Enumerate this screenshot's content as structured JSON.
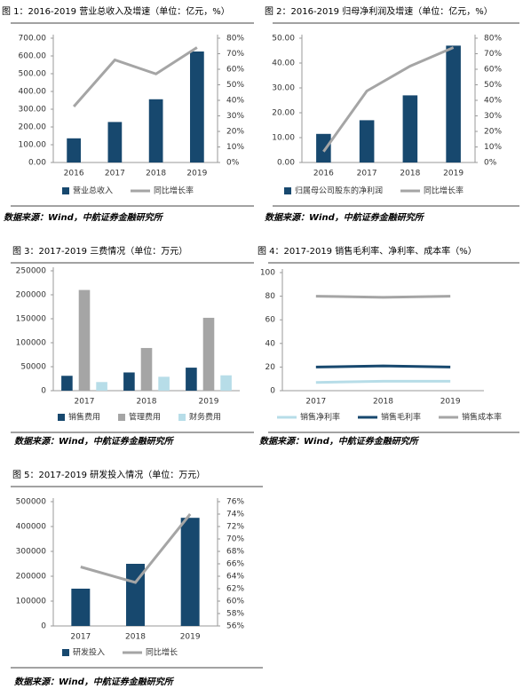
{
  "chart_data": [
    {
      "type": "bar_line",
      "title": "图 1：2016-2019 营业总收入及增速（单位：亿元，%）",
      "source": "数据来源：Wind，中航证券金融研究所",
      "categories": [
        "2016",
        "2017",
        "2018",
        "2019"
      ],
      "series": [
        {
          "name": "营业总收入",
          "color": "#17486e",
          "values": [
            136,
            228,
            356,
            625
          ]
        },
        {
          "name": "同比增长率",
          "color": "#a5a5a5",
          "axis": "y2",
          "values": [
            36,
            66,
            57,
            74
          ]
        }
      ],
      "ylim": [
        0,
        700
      ],
      "yticks": [
        {
          "value": 0,
          "label": "0.00"
        },
        {
          "value": 100,
          "label": "100.00"
        },
        {
          "value": 200,
          "label": "200.00"
        },
        {
          "value": 300,
          "label": "300.00"
        },
        {
          "value": 400,
          "label": "400.00"
        },
        {
          "value": 500,
          "label": "500.00"
        },
        {
          "value": 600,
          "label": "600.00"
        },
        {
          "value": 700,
          "label": "700.00"
        }
      ],
      "y2lim": [
        0,
        80
      ],
      "y2ticks": [
        {
          "value": 0,
          "label": "0%"
        },
        {
          "value": 10,
          "label": "10%"
        },
        {
          "value": 20,
          "label": "20%"
        },
        {
          "value": 30,
          "label": "30%"
        },
        {
          "value": 40,
          "label": "40%"
        },
        {
          "value": 50,
          "label": "50%"
        },
        {
          "value": 60,
          "label": "60%"
        },
        {
          "value": 70,
          "label": "70%"
        },
        {
          "value": 80,
          "label": "80%"
        }
      ]
    },
    {
      "type": "bar_line",
      "title": "图 2：2016-2019 归母净利润及增速（单位：亿元，%）",
      "source": "数据来源：Wind，中航证券金融研究所",
      "categories": [
        "2016",
        "2017",
        "2018",
        "2019"
      ],
      "series": [
        {
          "name": "归属母公司股东的净利润",
          "color": "#17486e",
          "values": [
            11.5,
            17,
            27,
            47
          ]
        },
        {
          "name": "同比增长率",
          "color": "#a5a5a5",
          "axis": "y2",
          "values": [
            7,
            46,
            62,
            74
          ]
        }
      ],
      "ylim": [
        0,
        50
      ],
      "yticks": [
        {
          "value": 0,
          "label": "0.00"
        },
        {
          "value": 10,
          "label": "10.00"
        },
        {
          "value": 20,
          "label": "20.00"
        },
        {
          "value": 30,
          "label": "30.00"
        },
        {
          "value": 40,
          "label": "40.00"
        },
        {
          "value": 50,
          "label": "50.00"
        }
      ],
      "y2lim": [
        0,
        80
      ],
      "y2ticks": [
        {
          "value": 0,
          "label": "0%"
        },
        {
          "value": 10,
          "label": "10%"
        },
        {
          "value": 20,
          "label": "20%"
        },
        {
          "value": 30,
          "label": "30%"
        },
        {
          "value": 40,
          "label": "40%"
        },
        {
          "value": 50,
          "label": "50%"
        },
        {
          "value": 60,
          "label": "60%"
        },
        {
          "value": 70,
          "label": "70%"
        },
        {
          "value": 80,
          "label": "80%"
        }
      ]
    },
    {
      "type": "bar",
      "title": "图 3：2017-2019 三费情况（单位：万元）",
      "source": "数据来源：Wind，中航证券金融研究所",
      "categories": [
        "2017",
        "2018",
        "2019"
      ],
      "series": [
        {
          "name": "销售费用",
          "color": "#17486e",
          "values": [
            31000,
            38000,
            48000
          ]
        },
        {
          "name": "管理费用",
          "color": "#a5a5a5",
          "values": [
            210000,
            89000,
            152000
          ]
        },
        {
          "name": "财务费用",
          "color": "#b7dde8",
          "values": [
            18000,
            29000,
            32000
          ]
        }
      ],
      "ylim": [
        0,
        250000
      ],
      "yticks": [
        0,
        50000,
        100000,
        150000,
        200000,
        250000
      ]
    },
    {
      "type": "line",
      "title": "图 4：2017-2019 销售毛利率、净利率、成本率（%）",
      "source": "数据来源：Wind，中航证券金融研究所",
      "categories": [
        "2017",
        "2018",
        "2019"
      ],
      "series": [
        {
          "name": "销售净利率",
          "color": "#b7dde8",
          "values": [
            7,
            8,
            8
          ]
        },
        {
          "name": "销售毛利率",
          "color": "#17486e",
          "values": [
            20,
            21,
            20
          ]
        },
        {
          "name": "销售成本率",
          "color": "#a5a5a5",
          "values": [
            80,
            79,
            80
          ]
        }
      ],
      "ylim": [
        0,
        100
      ],
      "yticks": [
        0,
        20,
        40,
        60,
        80,
        100
      ]
    },
    {
      "type": "bar_line",
      "title": "图 5：2017-2019 研发投入情况（单位：万元）",
      "source": "数据来源：Wind，中航证券金融研究所",
      "categories": [
        "2017",
        "2018",
        "2019"
      ],
      "series": [
        {
          "name": "研发投入",
          "color": "#17486e",
          "values": [
            150000,
            250000,
            435000
          ]
        },
        {
          "name": "同比增长",
          "color": "#a5a5a5",
          "axis": "y2",
          "values": [
            65.5,
            63,
            74
          ]
        }
      ],
      "ylim": [
        0,
        500000
      ],
      "yticks": [
        0,
        100000,
        200000,
        300000,
        400000,
        500000
      ],
      "y2lim": [
        56,
        76
      ],
      "y2ticks": [
        {
          "value": 56,
          "label": "56%"
        },
        {
          "value": 58,
          "label": "58%"
        },
        {
          "value": 60,
          "label": "60%"
        },
        {
          "value": 62,
          "label": "62%"
        },
        {
          "value": 64,
          "label": "64%"
        },
        {
          "value": 66,
          "label": "66%"
        },
        {
          "value": 68,
          "label": "68%"
        },
        {
          "value": 70,
          "label": "70%"
        },
        {
          "value": 72,
          "label": "72%"
        },
        {
          "value": 74,
          "label": "74%"
        },
        {
          "value": 76,
          "label": "76%"
        }
      ]
    }
  ]
}
